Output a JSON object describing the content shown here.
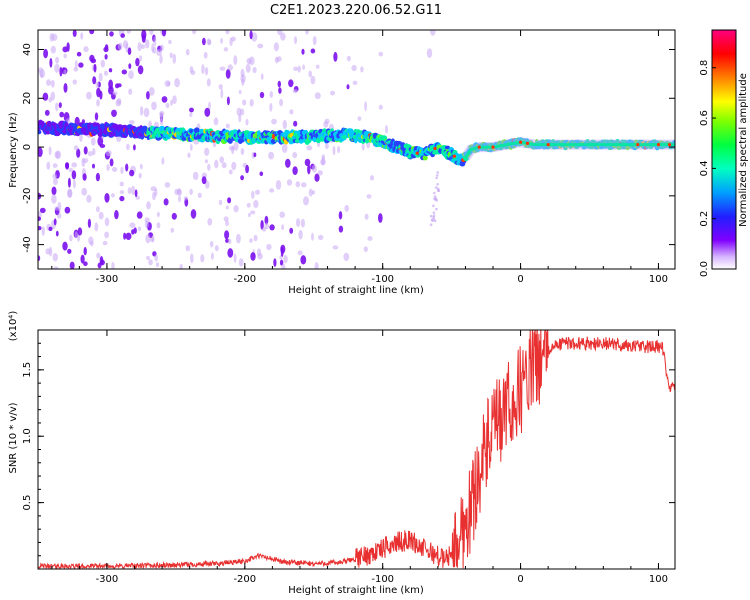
{
  "title": "C2E1.2023.220.06.52.G11",
  "chart_data": [
    {
      "type": "heatmap",
      "xlabel": "Height of straight line (km)",
      "ylabel": "Frequency (Hz)",
      "xlim": [
        -350,
        112
      ],
      "ylim": [
        -50,
        48
      ],
      "xticks": [
        -300,
        -200,
        -100,
        0,
        100
      ],
      "yticks": [
        -40,
        -20,
        0,
        20,
        40
      ],
      "ridge": {
        "x": [
          -350,
          -300,
          -270,
          -240,
          -200,
          -160,
          -130,
          -110,
          -95,
          -80,
          -70,
          -60,
          -50,
          -42,
          -36,
          -30,
          -20,
          -10,
          0,
          10,
          30,
          60,
          90,
          112
        ],
        "frequency": [
          8,
          7,
          6,
          5,
          4,
          4,
          5,
          4,
          1,
          -2,
          -3,
          0,
          -3,
          -6,
          -1,
          0,
          0,
          1,
          2,
          1,
          1,
          1,
          1,
          1
        ]
      },
      "colorbar": {
        "label": "Normalized spectral amplitude",
        "range": [
          0,
          0.95
        ],
        "ticks": [
          0.0,
          0.2,
          0.4,
          0.6,
          0.8
        ],
        "colormap": [
          "#ffffff",
          "#8000ff",
          "#0040ff",
          "#00c0ff",
          "#00ff80",
          "#80ff00",
          "#ffff00",
          "#ff8000",
          "#ff0000",
          "#ff0080"
        ]
      }
    },
    {
      "type": "line",
      "xlabel": "Height of straight line (km)",
      "ylabel": "SNR (10 * v/v)",
      "y_multiplier": "(x10⁴)",
      "xlim": [
        -350,
        112
      ],
      "ylim": [
        0,
        1.8
      ],
      "xticks": [
        -300,
        -200,
        -100,
        0,
        100
      ],
      "yticks": [
        0.5,
        1.0,
        1.5
      ],
      "ytick_labels": [
        "0.5",
        "1.0",
        "1.5"
      ],
      "series": [
        {
          "color": "#e83030",
          "x": [
            -350,
            -300,
            -250,
            -220,
            -200,
            -190,
            -170,
            -150,
            -130,
            -115,
            -100,
            -90,
            -80,
            -70,
            -60,
            -55,
            -50,
            -45,
            -40,
            -35,
            -30,
            -25,
            -20,
            -15,
            -10,
            -5,
            0,
            5,
            10,
            15,
            20,
            30,
            40,
            60,
            80,
            100,
            104,
            106,
            108,
            112
          ],
          "y": [
            0.02,
            0.02,
            0.03,
            0.04,
            0.06,
            0.1,
            0.05,
            0.04,
            0.05,
            0.09,
            0.15,
            0.2,
            0.22,
            0.15,
            0.1,
            0.07,
            0.12,
            0.2,
            0.35,
            0.5,
            0.75,
            0.9,
            1.05,
            1.1,
            1.2,
            1.25,
            1.35,
            1.45,
            1.55,
            1.6,
            1.65,
            1.7,
            1.7,
            1.7,
            1.68,
            1.67,
            1.65,
            1.45,
            1.36,
            1.37
          ]
        }
      ]
    }
  ]
}
